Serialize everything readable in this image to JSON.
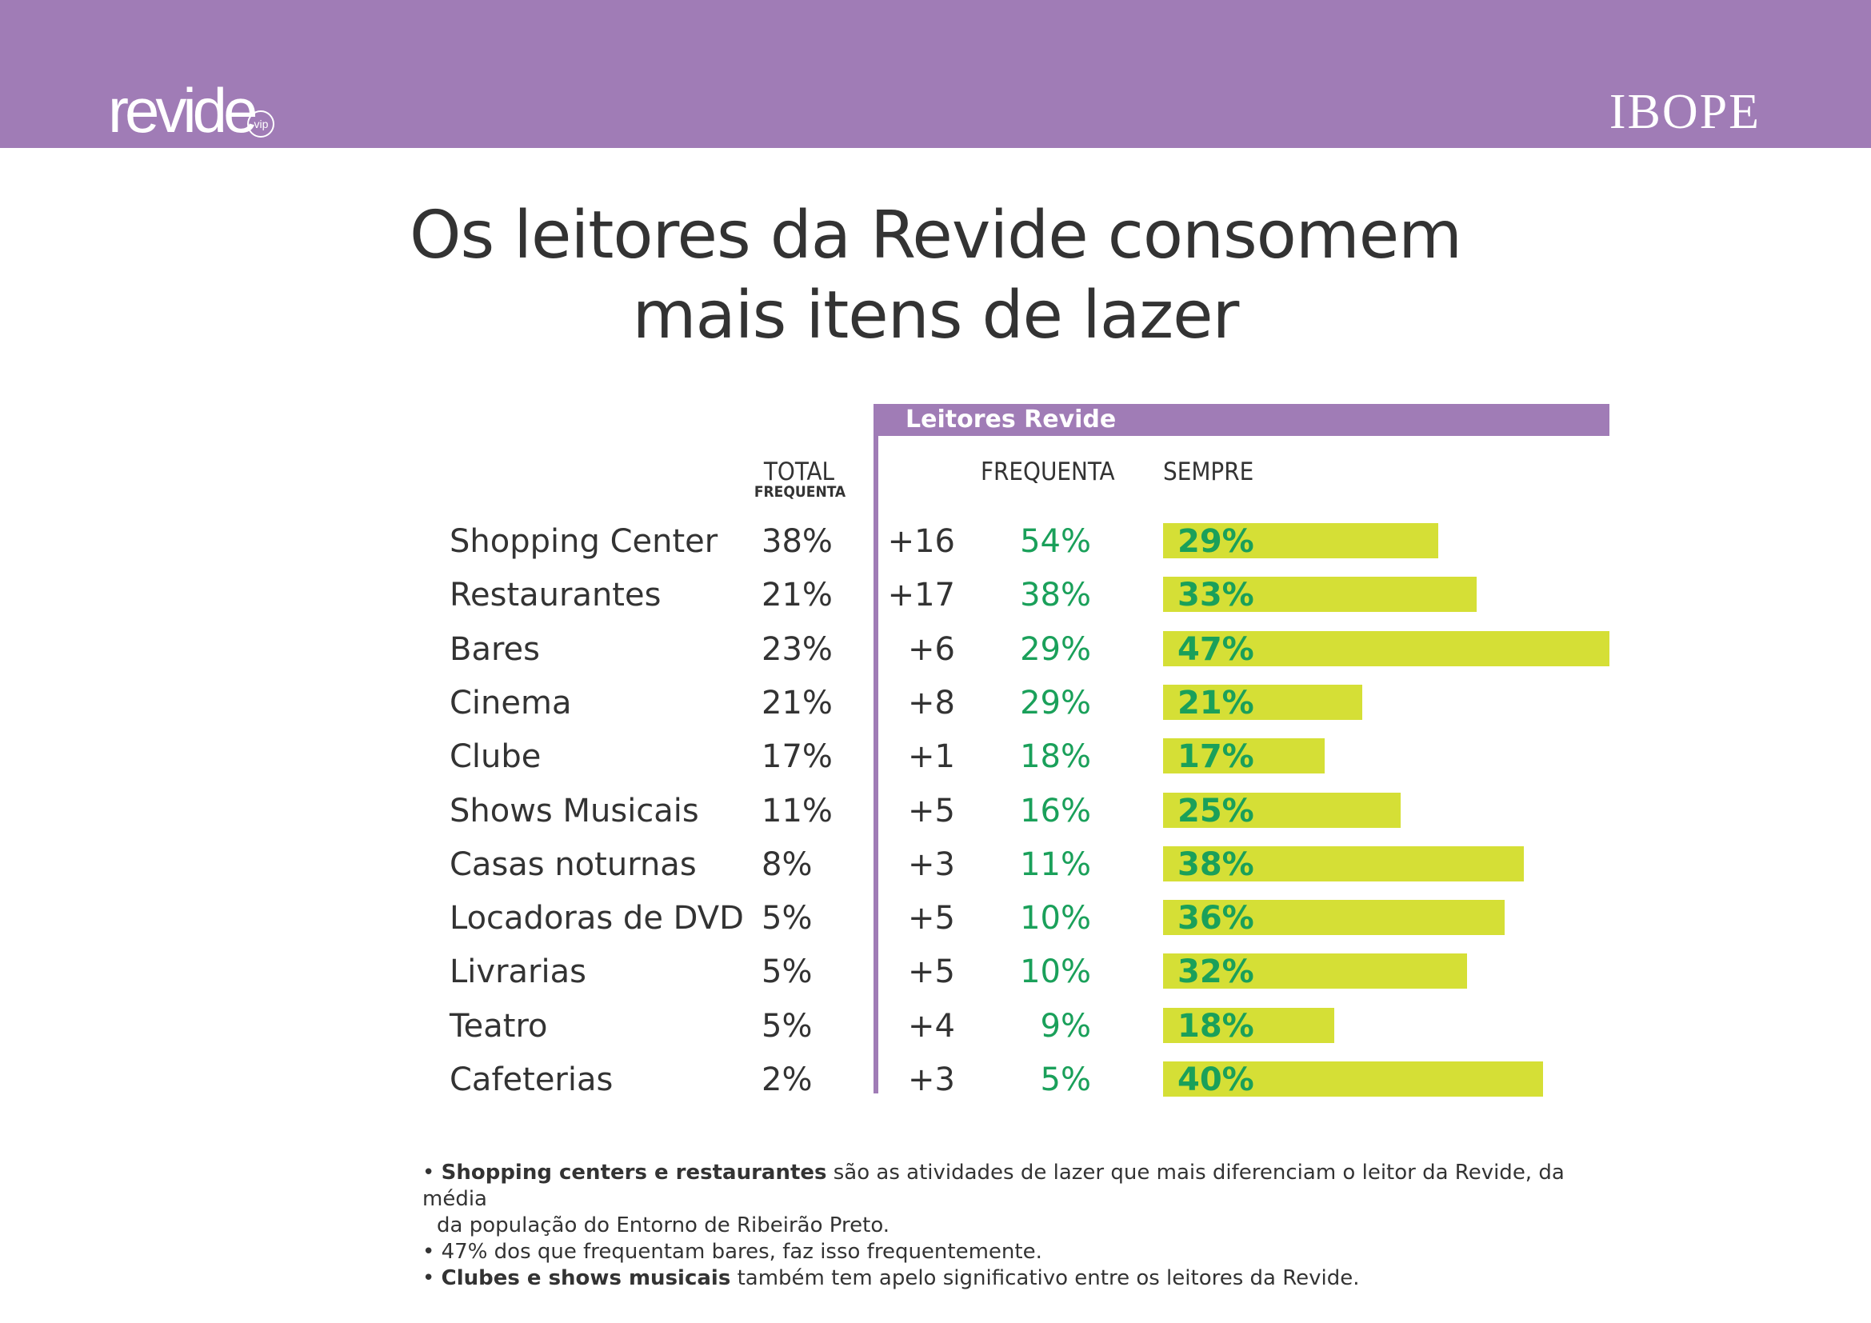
{
  "header": {
    "brand": "revide",
    "brand_badge": "vip",
    "partner": "IBOPE"
  },
  "title": {
    "line1": "Os leitores da Revide consomem",
    "line2": "mais itens de lazer"
  },
  "table": {
    "group_label": "Leitores Revide",
    "col_total": "TOTAL",
    "col_total_sub": "FREQUENTA",
    "col_frequenta": "FREQUENTA",
    "col_sempre": "SEMPRE"
  },
  "chart_data": {
    "type": "bar",
    "title": "Os leitores da Revide consomem mais itens de lazer",
    "categories": [
      "Shopping Center",
      "Restaurantes",
      "Bares",
      "Cinema",
      "Clube",
      "Shows Musicais",
      "Casas noturnas",
      "Locadoras de DVD",
      "Livrarias",
      "Teatro",
      "Cafeterias"
    ],
    "total_frequenta": [
      "38%",
      "21%",
      "23%",
      "21%",
      "17%",
      "11%",
      "8%",
      "5%",
      "5%",
      "5%",
      "2%"
    ],
    "diferenca": [
      "+16",
      "+17",
      "+6",
      "+8",
      "+1",
      "+5",
      "+3",
      "+5",
      "+5",
      "+4",
      "+3"
    ],
    "revide_frequenta": [
      "54%",
      "38%",
      "29%",
      "29%",
      "18%",
      "16%",
      "11%",
      "10%",
      "10%",
      "9%",
      "5%"
    ],
    "series": [
      {
        "name": "SEMPRE",
        "values": [
          29,
          33,
          47,
          21,
          17,
          25,
          38,
          36,
          32,
          18,
          40
        ]
      }
    ],
    "value_labels": [
      "29%",
      "33%",
      "47%",
      "21%",
      "17%",
      "25%",
      "38%",
      "36%",
      "32%",
      "18%",
      "40%"
    ],
    "ylim": [
      0,
      47
    ],
    "bar_color": "#d5df36",
    "label_color": "#1aa05a"
  },
  "notes": {
    "n1_bold": "Shopping centers e restaurantes",
    "n1_rest": " são as atividades de lazer que mais diferenciam   o leitor da Revide, da média",
    "n1_cont": "da população do Entorno de Ribeirão Preto.",
    "n2": "47% dos que frequentam bares, faz isso frequentemente.",
    "n3_bold": "Clubes e shows musicais",
    "n3_rest": " também tem apelo significativo entre os leitores da Revide."
  },
  "colors": {
    "band": "#a07cb6",
    "bar": "#d5df36",
    "green_text": "#1aa05a"
  }
}
